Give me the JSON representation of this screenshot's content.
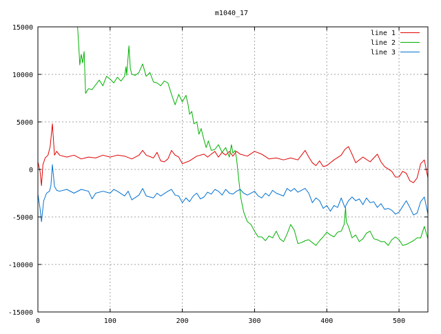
{
  "chart_data": {
    "type": "line",
    "title": "m1040_17",
    "xlabel": "",
    "ylabel": "",
    "xlim": [
      0,
      540
    ],
    "ylim": [
      -15000,
      15000
    ],
    "xticks": [
      0,
      100,
      200,
      300,
      400,
      500
    ],
    "yticks": [
      -15000,
      -10000,
      -5000,
      0,
      5000,
      10000,
      15000
    ],
    "grid": true,
    "legend_position": "top-right",
    "series": [
      {
        "name": "line 1",
        "color": "#e00000",
        "points": [
          [
            0,
            800
          ],
          [
            3,
            -200
          ],
          [
            5,
            -1700
          ],
          [
            7,
            500
          ],
          [
            10,
            1200
          ],
          [
            14,
            1500
          ],
          [
            17,
            2400
          ],
          [
            20,
            4800
          ],
          [
            23,
            1500
          ],
          [
            26,
            1900
          ],
          [
            30,
            1500
          ],
          [
            40,
            1300
          ],
          [
            50,
            1500
          ],
          [
            60,
            1100
          ],
          [
            70,
            1300
          ],
          [
            80,
            1200
          ],
          [
            90,
            1500
          ],
          [
            100,
            1300
          ],
          [
            110,
            1500
          ],
          [
            120,
            1400
          ],
          [
            130,
            1100
          ],
          [
            140,
            1500
          ],
          [
            145,
            2000
          ],
          [
            150,
            1500
          ],
          [
            160,
            1200
          ],
          [
            165,
            1800
          ],
          [
            170,
            900
          ],
          [
            175,
            800
          ],
          [
            180,
            1100
          ],
          [
            185,
            2000
          ],
          [
            190,
            1500
          ],
          [
            195,
            1300
          ],
          [
            200,
            600
          ],
          [
            210,
            900
          ],
          [
            220,
            1400
          ],
          [
            230,
            1600
          ],
          [
            235,
            1300
          ],
          [
            240,
            1600
          ],
          [
            245,
            1900
          ],
          [
            250,
            1300
          ],
          [
            255,
            1800
          ],
          [
            260,
            1500
          ],
          [
            265,
            1900
          ],
          [
            270,
            1400
          ],
          [
            275,
            1900
          ],
          [
            280,
            1600
          ],
          [
            290,
            1400
          ],
          [
            300,
            1900
          ],
          [
            310,
            1600
          ],
          [
            320,
            1100
          ],
          [
            330,
            1200
          ],
          [
            340,
            1000
          ],
          [
            350,
            1200
          ],
          [
            360,
            1000
          ],
          [
            370,
            2000
          ],
          [
            375,
            1300
          ],
          [
            380,
            700
          ],
          [
            385,
            400
          ],
          [
            390,
            900
          ],
          [
            395,
            300
          ],
          [
            400,
            400
          ],
          [
            410,
            1000
          ],
          [
            420,
            1500
          ],
          [
            425,
            2100
          ],
          [
            430,
            2400
          ],
          [
            435,
            1600
          ],
          [
            440,
            700
          ],
          [
            450,
            1300
          ],
          [
            460,
            800
          ],
          [
            470,
            1600
          ],
          [
            475,
            800
          ],
          [
            480,
            300
          ],
          [
            490,
            -200
          ],
          [
            495,
            -800
          ],
          [
            500,
            -800
          ],
          [
            505,
            -200
          ],
          [
            510,
            -400
          ],
          [
            515,
            -1200
          ],
          [
            520,
            -1400
          ],
          [
            525,
            -900
          ],
          [
            530,
            600
          ],
          [
            535,
            1000
          ],
          [
            540,
            -900
          ]
        ]
      },
      {
        "name": "line 2",
        "color": "#00b000",
        "points": [
          [
            55,
            15000
          ],
          [
            57,
            12500
          ],
          [
            58,
            11000
          ],
          [
            60,
            12100
          ],
          [
            62,
            11200
          ],
          [
            64,
            12400
          ],
          [
            66,
            8000
          ],
          [
            70,
            8500
          ],
          [
            75,
            8400
          ],
          [
            80,
            8900
          ],
          [
            85,
            9400
          ],
          [
            90,
            8800
          ],
          [
            95,
            9800
          ],
          [
            100,
            9500
          ],
          [
            105,
            9100
          ],
          [
            110,
            9700
          ],
          [
            115,
            9300
          ],
          [
            120,
            9800
          ],
          [
            122,
            10800
          ],
          [
            123,
            9900
          ],
          [
            126,
            13000
          ],
          [
            128,
            10600
          ],
          [
            130,
            10000
          ],
          [
            135,
            9900
          ],
          [
            140,
            10200
          ],
          [
            145,
            11100
          ],
          [
            150,
            9800
          ],
          [
            155,
            10200
          ],
          [
            160,
            9200
          ],
          [
            165,
            9100
          ],
          [
            170,
            8800
          ],
          [
            175,
            9300
          ],
          [
            180,
            9100
          ],
          [
            185,
            7900
          ],
          [
            190,
            6800
          ],
          [
            195,
            7900
          ],
          [
            200,
            7100
          ],
          [
            205,
            7800
          ],
          [
            208,
            6800
          ],
          [
            210,
            5800
          ],
          [
            213,
            6100
          ],
          [
            216,
            4800
          ],
          [
            220,
            5000
          ],
          [
            223,
            3700
          ],
          [
            226,
            4300
          ],
          [
            230,
            3100
          ],
          [
            233,
            2300
          ],
          [
            236,
            3000
          ],
          [
            240,
            2000
          ],
          [
            245,
            2100
          ],
          [
            250,
            2600
          ],
          [
            255,
            1800
          ],
          [
            260,
            2300
          ],
          [
            265,
            1300
          ],
          [
            268,
            2600
          ],
          [
            270,
            1700
          ],
          [
            273,
            2000
          ],
          [
            275,
            1200
          ],
          [
            278,
            -1000
          ],
          [
            281,
            -3000
          ],
          [
            285,
            -4500
          ],
          [
            290,
            -5500
          ],
          [
            295,
            -5800
          ],
          [
            300,
            -6500
          ],
          [
            305,
            -7100
          ],
          [
            310,
            -7100
          ],
          [
            315,
            -7500
          ],
          [
            320,
            -7000
          ],
          [
            325,
            -7200
          ],
          [
            330,
            -6500
          ],
          [
            335,
            -7300
          ],
          [
            340,
            -7600
          ],
          [
            345,
            -6800
          ],
          [
            350,
            -5800
          ],
          [
            355,
            -6400
          ],
          [
            360,
            -7800
          ],
          [
            365,
            -7700
          ],
          [
            370,
            -7500
          ],
          [
            375,
            -7400
          ],
          [
            380,
            -7700
          ],
          [
            385,
            -8000
          ],
          [
            390,
            -7500
          ],
          [
            395,
            -7100
          ],
          [
            400,
            -6600
          ],
          [
            405,
            -6900
          ],
          [
            410,
            -7100
          ],
          [
            415,
            -6600
          ],
          [
            420,
            -6500
          ],
          [
            424,
            -5800
          ],
          [
            426,
            -4000
          ],
          [
            427,
            -5500
          ],
          [
            430,
            -6000
          ],
          [
            435,
            -7200
          ],
          [
            440,
            -6900
          ],
          [
            445,
            -7600
          ],
          [
            450,
            -7300
          ],
          [
            455,
            -6700
          ],
          [
            460,
            -6500
          ],
          [
            465,
            -7300
          ],
          [
            470,
            -7400
          ],
          [
            475,
            -7600
          ],
          [
            480,
            -7600
          ],
          [
            485,
            -8000
          ],
          [
            490,
            -7400
          ],
          [
            495,
            -7100
          ],
          [
            500,
            -7400
          ],
          [
            505,
            -8000
          ],
          [
            510,
            -7900
          ],
          [
            515,
            -7700
          ],
          [
            520,
            -7500
          ],
          [
            525,
            -7200
          ],
          [
            530,
            -7200
          ],
          [
            535,
            -6000
          ],
          [
            540,
            -7300
          ]
        ]
      },
      {
        "name": "line 3",
        "color": "#0070d0",
        "points": [
          [
            0,
            -2600
          ],
          [
            3,
            -4100
          ],
          [
            5,
            -5500
          ],
          [
            8,
            -3300
          ],
          [
            12,
            -2500
          ],
          [
            16,
            -2300
          ],
          [
            18,
            -1700
          ],
          [
            20,
            500
          ],
          [
            23,
            -1800
          ],
          [
            26,
            -2200
          ],
          [
            30,
            -2300
          ],
          [
            40,
            -2100
          ],
          [
            50,
            -2500
          ],
          [
            60,
            -2100
          ],
          [
            70,
            -2300
          ],
          [
            75,
            -3100
          ],
          [
            80,
            -2500
          ],
          [
            90,
            -2300
          ],
          [
            100,
            -2500
          ],
          [
            105,
            -2100
          ],
          [
            110,
            -2300
          ],
          [
            120,
            -2800
          ],
          [
            125,
            -2300
          ],
          [
            130,
            -3200
          ],
          [
            140,
            -2700
          ],
          [
            145,
            -2000
          ],
          [
            150,
            -2800
          ],
          [
            160,
            -3000
          ],
          [
            165,
            -2500
          ],
          [
            170,
            -2800
          ],
          [
            180,
            -2300
          ],
          [
            185,
            -2100
          ],
          [
            190,
            -2700
          ],
          [
            195,
            -2800
          ],
          [
            200,
            -3500
          ],
          [
            205,
            -3000
          ],
          [
            210,
            -3400
          ],
          [
            215,
            -2800
          ],
          [
            220,
            -2500
          ],
          [
            225,
            -3100
          ],
          [
            230,
            -2900
          ],
          [
            235,
            -2400
          ],
          [
            240,
            -2600
          ],
          [
            245,
            -2100
          ],
          [
            250,
            -2300
          ],
          [
            255,
            -2700
          ],
          [
            260,
            -2100
          ],
          [
            265,
            -2500
          ],
          [
            270,
            -2600
          ],
          [
            275,
            -2300
          ],
          [
            280,
            -2100
          ],
          [
            285,
            -2500
          ],
          [
            290,
            -2700
          ],
          [
            300,
            -2300
          ],
          [
            305,
            -2800
          ],
          [
            310,
            -3000
          ],
          [
            315,
            -2500
          ],
          [
            320,
            -2800
          ],
          [
            325,
            -2200
          ],
          [
            330,
            -2500
          ],
          [
            340,
            -2800
          ],
          [
            345,
            -2000
          ],
          [
            350,
            -2300
          ],
          [
            355,
            -2000
          ],
          [
            360,
            -2400
          ],
          [
            370,
            -2000
          ],
          [
            375,
            -2500
          ],
          [
            380,
            -3500
          ],
          [
            385,
            -3000
          ],
          [
            390,
            -3300
          ],
          [
            395,
            -4100
          ],
          [
            400,
            -3800
          ],
          [
            405,
            -4400
          ],
          [
            410,
            -3800
          ],
          [
            415,
            -4000
          ],
          [
            420,
            -3000
          ],
          [
            425,
            -4000
          ],
          [
            430,
            -3300
          ],
          [
            435,
            -2900
          ],
          [
            440,
            -3300
          ],
          [
            445,
            -3100
          ],
          [
            450,
            -3700
          ],
          [
            455,
            -3000
          ],
          [
            460,
            -3500
          ],
          [
            465,
            -3400
          ],
          [
            470,
            -4000
          ],
          [
            475,
            -3600
          ],
          [
            480,
            -4200
          ],
          [
            485,
            -4100
          ],
          [
            490,
            -4300
          ],
          [
            495,
            -4700
          ],
          [
            500,
            -4500
          ],
          [
            505,
            -3900
          ],
          [
            510,
            -3300
          ],
          [
            515,
            -4000
          ],
          [
            520,
            -4800
          ],
          [
            525,
            -4600
          ],
          [
            530,
            -3400
          ],
          [
            535,
            -2900
          ],
          [
            540,
            -4700
          ]
        ]
      }
    ]
  }
}
